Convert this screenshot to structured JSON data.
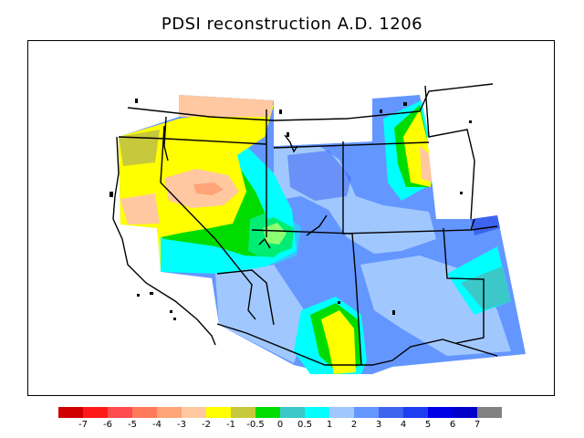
{
  "title": "PDSI reconstruction A.D. 1206",
  "colorbar": {
    "colors": [
      "#d00000",
      "#ff1a1a",
      "#ff4d4d",
      "#ff7a5a",
      "#ffa478",
      "#ffc8a0",
      "#ffff00",
      "#c8c83c",
      "#00dc00",
      "#3cc8c8",
      "#00ffff",
      "#a0c8ff",
      "#6496ff",
      "#3c64f0",
      "#1e3cf0",
      "#0000e6",
      "#0000c8",
      "#828282"
    ],
    "labels": [
      "-7",
      "-6",
      "-5",
      "-4",
      "-3",
      "-2",
      "-1",
      "-0.5",
      "0",
      "0.5",
      "1",
      "2",
      "3",
      "4",
      "5",
      "6",
      "7"
    ]
  },
  "palette": {
    "bg_blue": "#6496ff",
    "light_blue": "#a0c8ff",
    "cyan": "#00ffff",
    "teal": "#3cc8c8",
    "green": "#00dc00",
    "olive": "#c8c83c",
    "yellow": "#ffff00",
    "peach": "#ffc8a0",
    "salmon": "#ffa478",
    "blue": "#3c64f0"
  }
}
